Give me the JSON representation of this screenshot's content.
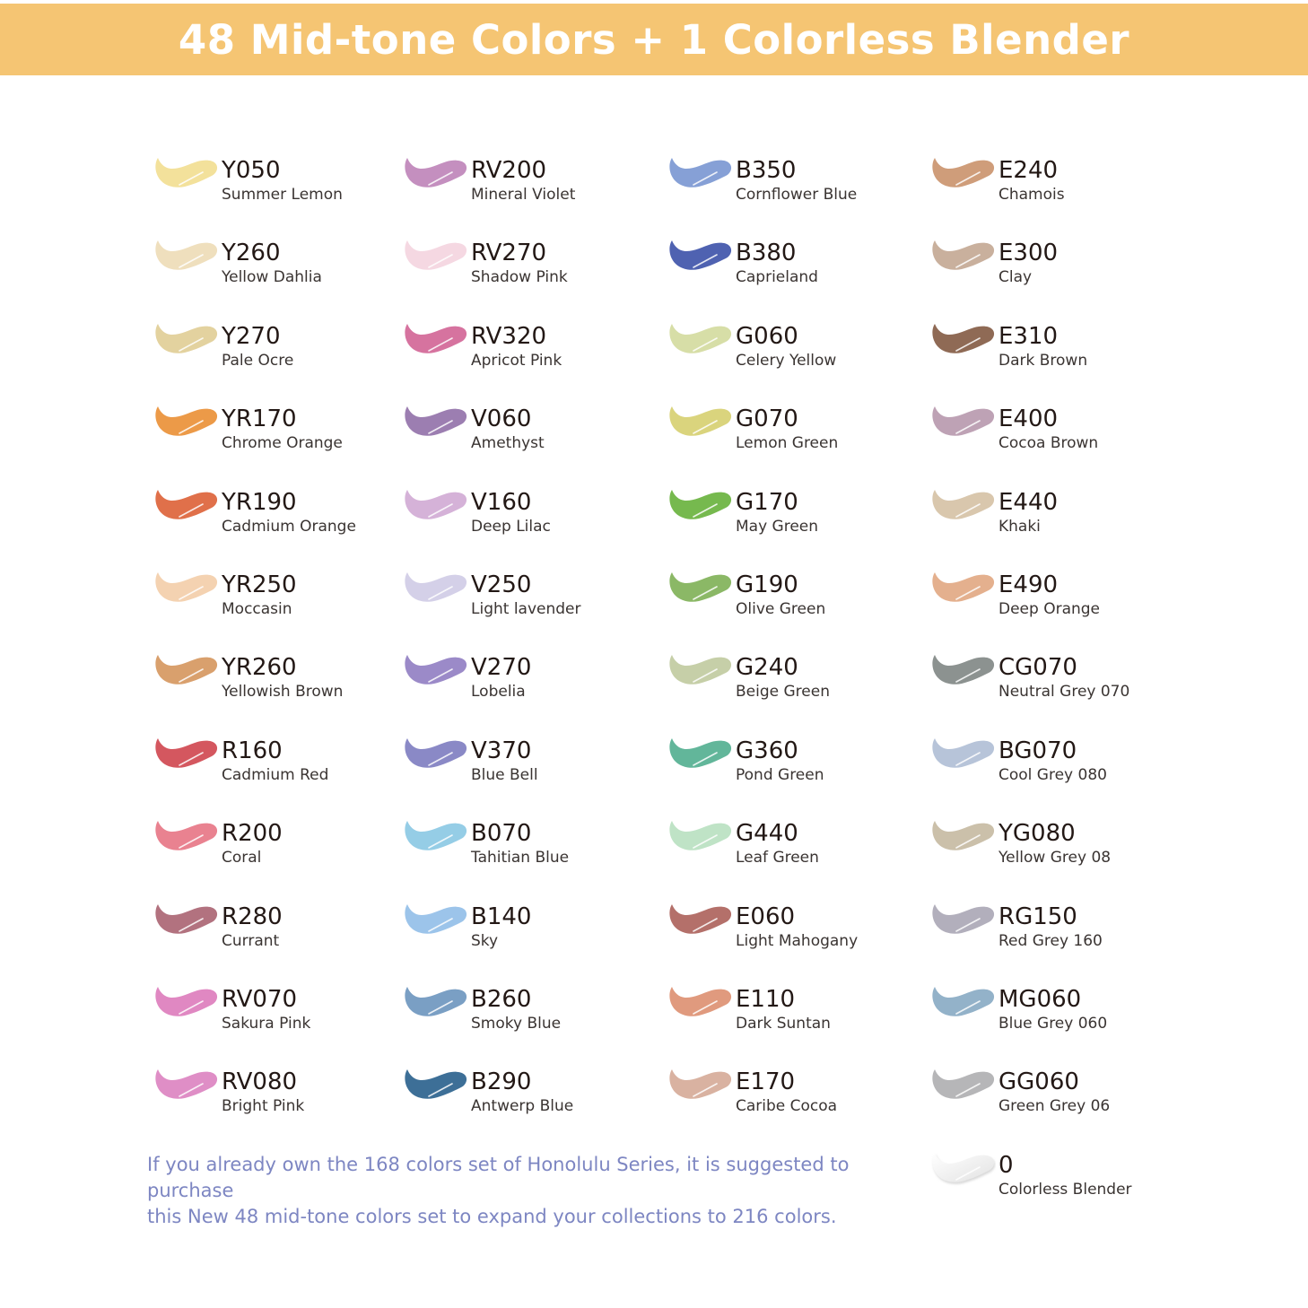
{
  "banner": {
    "title": "48 Mid-tone Colors + 1 Colorless Blender",
    "background": "#f5c573"
  },
  "columns": [
    {
      "items": [
        {
          "code": "Y050",
          "name": "Summer Lemon",
          "color": "#f3e19b"
        },
        {
          "code": "Y260",
          "name": "Yellow Dahlia",
          "color": "#efdfbd"
        },
        {
          "code": "Y270",
          "name": "Pale Ocre",
          "color": "#e3d29f"
        },
        {
          "code": "YR170",
          "name": "Chrome Orange",
          "color": "#ec9a48"
        },
        {
          "code": "YR190",
          "name": "Cadmium Orange",
          "color": "#e0704a"
        },
        {
          "code": "YR250",
          "name": "Moccasin",
          "color": "#f4d2b1"
        },
        {
          "code": "YR260",
          "name": "Yellowish Brown",
          "color": "#d9a06d"
        },
        {
          "code": "R160",
          "name": "Cadmium Red",
          "color": "#d4575f"
        },
        {
          "code": "R200",
          "name": "Coral",
          "color": "#e98290"
        },
        {
          "code": "R280",
          "name": "Currant",
          "color": "#b2727f"
        },
        {
          "code": "RV070",
          "name": "Sakura Pink",
          "color": "#e088c2"
        },
        {
          "code": "RV080",
          "name": "Bright Pink",
          "color": "#df8ec6"
        }
      ]
    },
    {
      "items": [
        {
          "code": "RV200",
          "name": "Mineral Violet",
          "color": "#c48fbf"
        },
        {
          "code": "RV270",
          "name": "Shadow Pink",
          "color": "#f5d8e2"
        },
        {
          "code": "RV320",
          "name": "Apricot Pink",
          "color": "#d6739f"
        },
        {
          "code": "V060",
          "name": "Amethyst",
          "color": "#9c7eb1"
        },
        {
          "code": "V160",
          "name": "Deep Lilac",
          "color": "#d5b2d8"
        },
        {
          "code": "V250",
          "name": "Light lavender",
          "color": "#d4d0e8"
        },
        {
          "code": "V270",
          "name": "Lobelia",
          "color": "#9b8ac8"
        },
        {
          "code": "V370",
          "name": "Blue Bell",
          "color": "#8a89c6"
        },
        {
          "code": "B070",
          "name": "Tahitian Blue",
          "color": "#95cde6"
        },
        {
          "code": "B140",
          "name": "Sky",
          "color": "#9cc4ea"
        },
        {
          "code": "B260",
          "name": "Smoky Blue",
          "color": "#7a9fc4"
        },
        {
          "code": "B290",
          "name": "Antwerp Blue",
          "color": "#3d6f97"
        }
      ]
    },
    {
      "items": [
        {
          "code": "B350",
          "name": "Cornflower Blue",
          "color": "#86a0d6"
        },
        {
          "code": "B380",
          "name": "Caprieland",
          "color": "#4f62b1"
        },
        {
          "code": "G060",
          "name": "Celery Yellow",
          "color": "#d7dea7"
        },
        {
          "code": "G070",
          "name": "Lemon Green",
          "color": "#dad47d"
        },
        {
          "code": "G170",
          "name": "May Green",
          "color": "#76b94e"
        },
        {
          "code": "G190",
          "name": "Olive Green",
          "color": "#8bb866"
        },
        {
          "code": "G240",
          "name": "Beige Green",
          "color": "#c6cfa8"
        },
        {
          "code": "G360",
          "name": "Pond Green",
          "color": "#62b69a"
        },
        {
          "code": "G440",
          "name": "Leaf Green",
          "color": "#bfe3c6"
        },
        {
          "code": "E060",
          "name": "Light Mahogany",
          "color": "#b4706a"
        },
        {
          "code": "E110",
          "name": "Dark Suntan",
          "color": "#e09a7e"
        },
        {
          "code": "E170",
          "name": "Caribe Cocoa",
          "color": "#d9b2a1"
        }
      ]
    },
    {
      "items": [
        {
          "code": "E240",
          "name": "Chamois",
          "color": "#cf9d7a"
        },
        {
          "code": "E300",
          "name": "Clay",
          "color": "#c9b09d"
        },
        {
          "code": "E310",
          "name": "Dark Brown",
          "color": "#8f6a55"
        },
        {
          "code": "E400",
          "name": "Cocoa Brown",
          "color": "#bea2b5"
        },
        {
          "code": "E440",
          "name": "Khaki",
          "color": "#d9c7ad"
        },
        {
          "code": "E490",
          "name": "Deep Orange",
          "color": "#e4b08e"
        },
        {
          "code": "CG070",
          "name": "Neutral Grey 070",
          "color": "#8c9290"
        },
        {
          "code": "BG070",
          "name": "Cool Grey 080",
          "color": "#b7c4d9"
        },
        {
          "code": "YG080",
          "name": "Yellow Grey 08",
          "color": "#cbc0aa"
        },
        {
          "code": "RG150",
          "name": "Red Grey 160",
          "color": "#b2afbc"
        },
        {
          "code": "MG060",
          "name": "Blue Grey 060",
          "color": "#93b2c9"
        },
        {
          "code": "GG060",
          "name": "Green Grey 06",
          "color": "#b6b6b8"
        },
        {
          "code": "0",
          "name": "Colorless Blender",
          "color": "#f4f4f4"
        }
      ]
    }
  ],
  "note": {
    "line1": "If you already own the 168 colors set of Honolulu Series, it is suggested to purchase",
    "line2": "this New 48 mid-tone colors set to expand your collections to 216 colors.",
    "color": "#7d86c2"
  }
}
